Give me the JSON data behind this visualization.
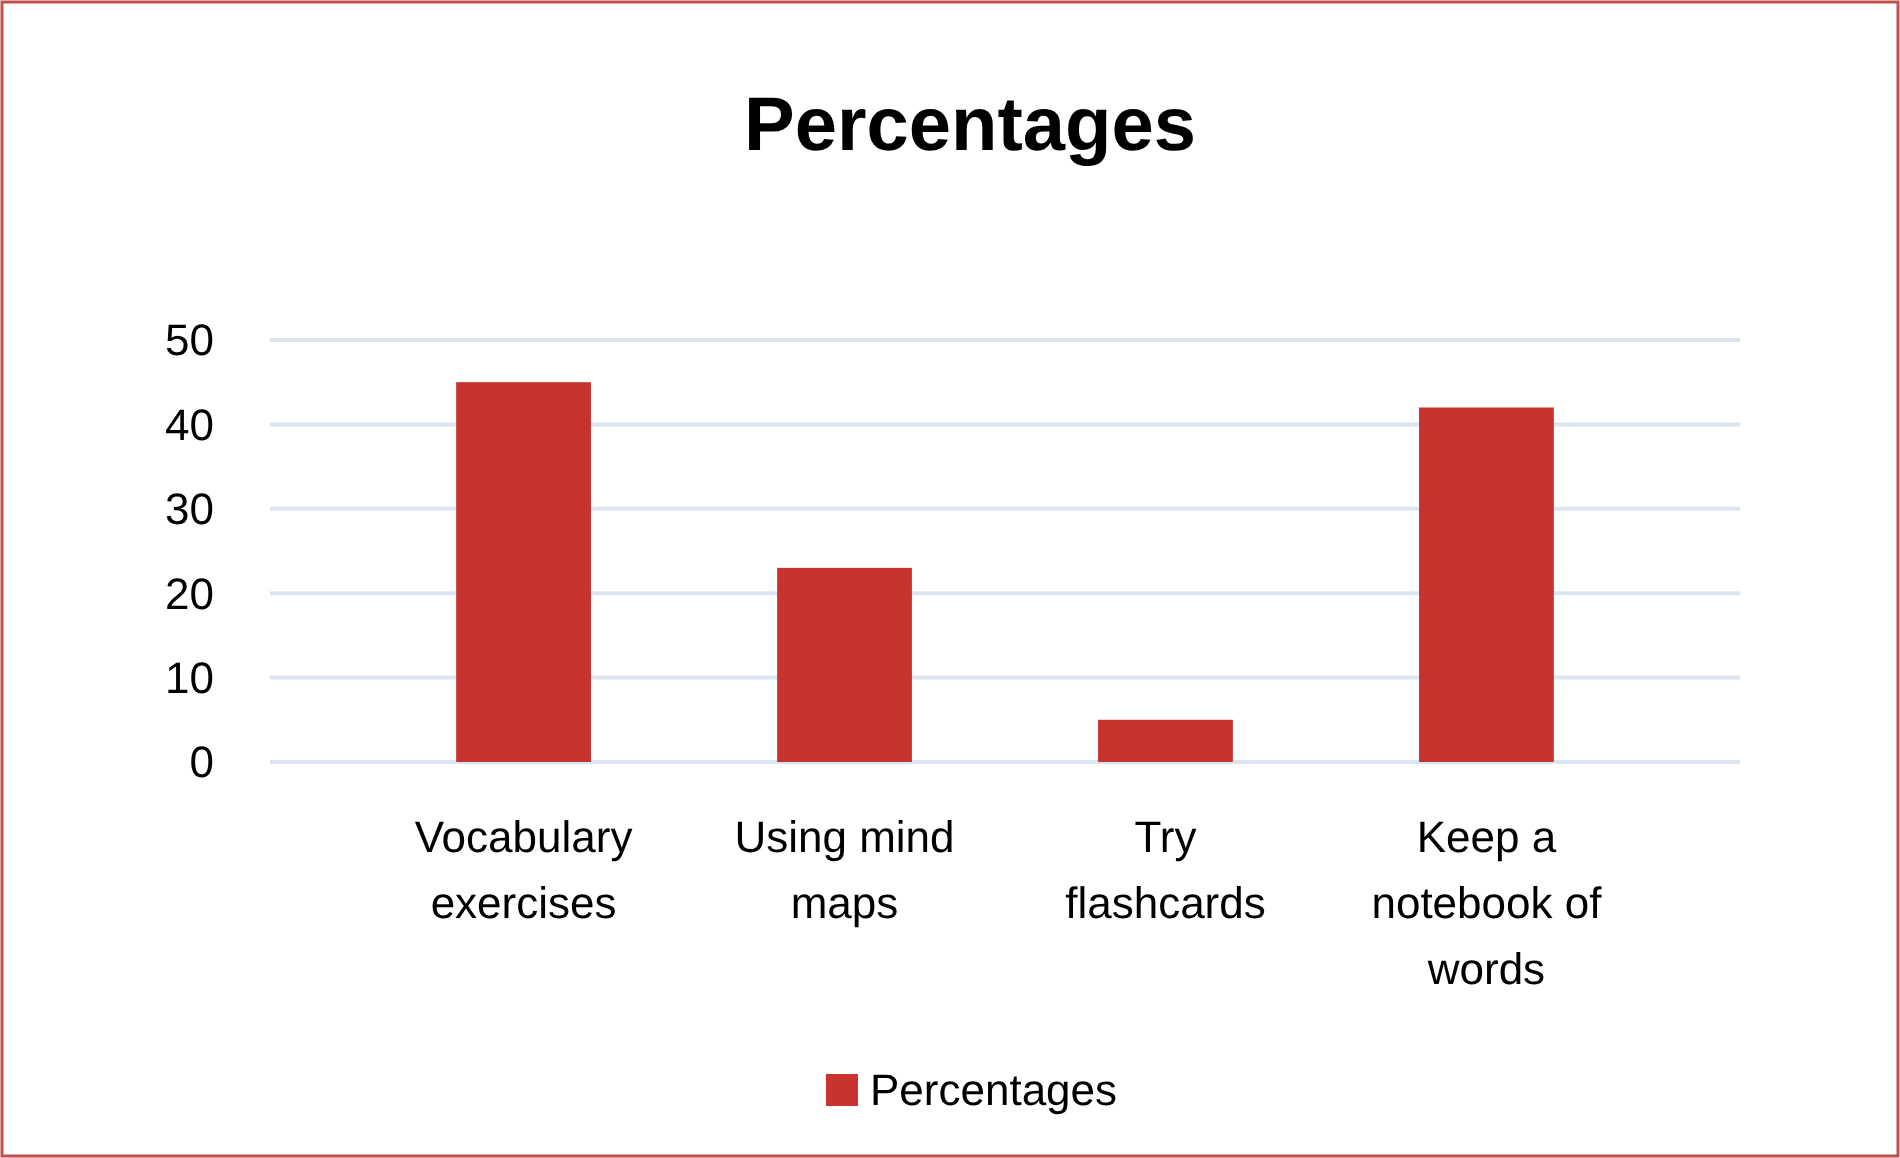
{
  "chart_data": {
    "type": "bar",
    "title": "Percentages",
    "categories": [
      "Vocabulary exercises",
      "Using mind maps",
      "Try flashcards",
      "Keep a notebook of words"
    ],
    "series": [
      {
        "name": "Percentages",
        "color": "#c8332f",
        "values": [
          45,
          23,
          5,
          42
        ]
      }
    ],
    "ylim": [
      0,
      50
    ],
    "yticks": [
      0,
      10,
      20,
      30,
      40,
      50
    ],
    "grid": "y",
    "legend": "bottom"
  }
}
